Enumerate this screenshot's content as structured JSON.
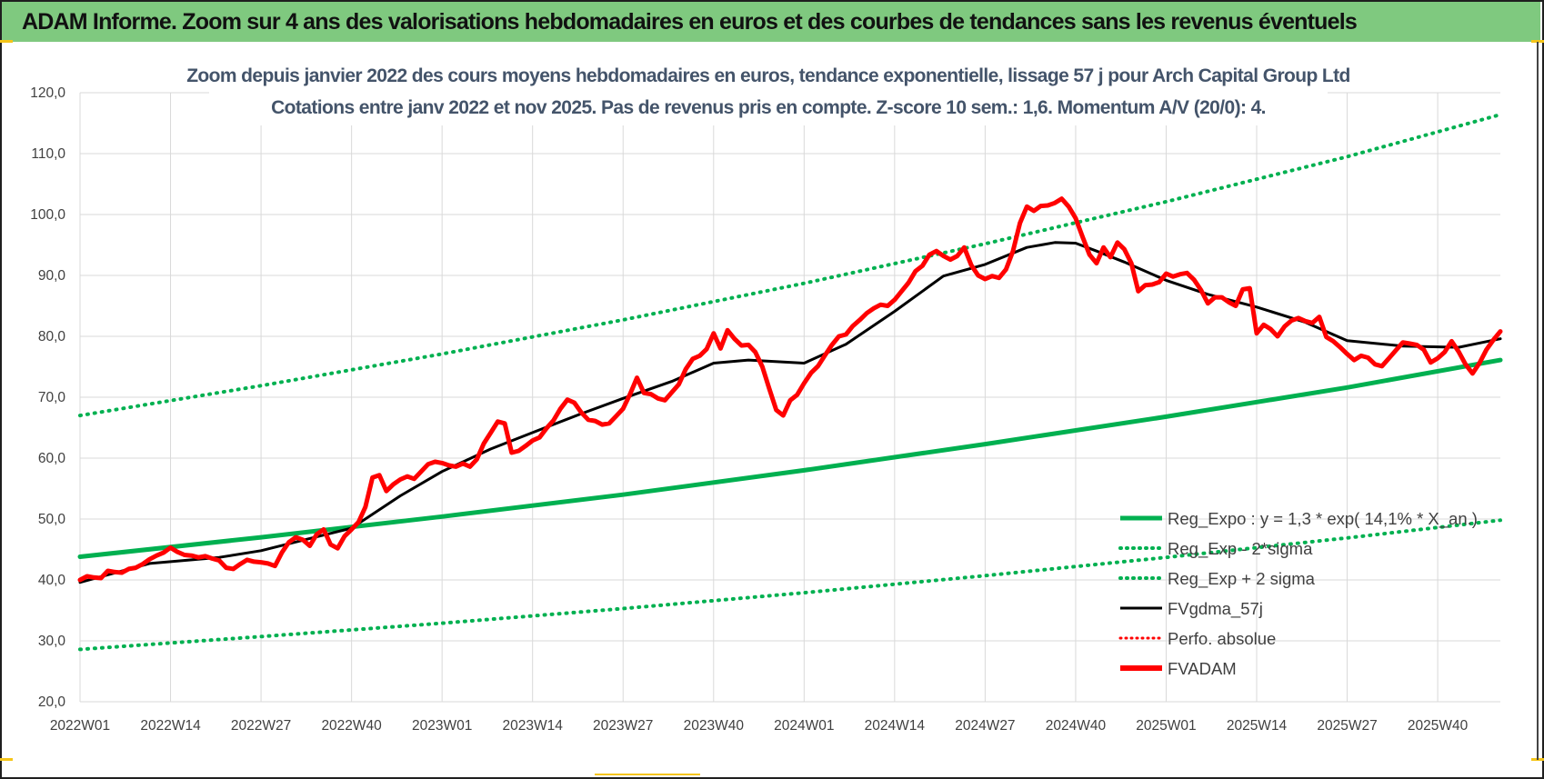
{
  "header": {
    "title": "ADAM Informe. Zoom sur 4 ans des valorisations hebdomadaires en euros et des courbes de tendances sans les revenus éventuels"
  },
  "colors": {
    "header_bg": "#7fc97f",
    "trend": "#00b050",
    "fvgdma": "#000000",
    "perfo": "#ff0000",
    "fvadam": "#ff0000",
    "grid": "#d9d9d9"
  },
  "chart_data": {
    "type": "line",
    "title": "Zoom depuis janvier 2022 des cours moyens hebdomadaires en euros, tendance exponentielle, lissage 57 j pour Arch Capital Group Ltd",
    "subtitle": "Cotations entre janv 2022 et nov 2025. Pas de revenus pris en compte. Z-score 10 sem.: 1,6. Momentum A/V (20/0): 4.",
    "xlabel": "",
    "ylabel": "",
    "ylim": [
      20,
      120
    ],
    "yticks": [
      "120,0",
      "110,0",
      "100,0",
      "90,0",
      "80,0",
      "70,0",
      "60,0",
      "50,0",
      "40,0",
      "30,0",
      "20,0"
    ],
    "x_tick_labels": [
      "2022W01",
      "2022W14",
      "2022W27",
      "2022W40",
      "2023W01",
      "2023W14",
      "2023W27",
      "2023W40",
      "2024W01",
      "2024W14",
      "2024W27",
      "2024W40",
      "2025W01",
      "2025W14",
      "2025W27",
      "2025W40"
    ],
    "x_tick_positions": [
      0,
      13,
      26,
      39,
      52,
      65,
      78,
      91,
      104,
      117,
      130,
      143,
      156,
      169,
      182,
      195
    ],
    "x_max": 204,
    "grid": true,
    "legend_position": "bottom-right",
    "series": [
      {
        "name": "Reg_Expo : y = 1,3 * exp( 14,1% * X_an.)",
        "style": "solid-thick",
        "color": "#00b050",
        "x": [
          0,
          26,
          52,
          78,
          104,
          130,
          156,
          182,
          204
        ],
        "values": [
          43.8,
          47.0,
          50.4,
          54.0,
          58.0,
          62.3,
          66.8,
          71.6,
          76.1
        ]
      },
      {
        "name": "Reg_Exp - 2*sigma",
        "style": "dotted",
        "color": "#00b050",
        "x": [
          0,
          26,
          52,
          78,
          104,
          130,
          156,
          182,
          204
        ],
        "values": [
          28.6,
          30.7,
          32.9,
          35.3,
          37.9,
          40.7,
          43.7,
          46.9,
          49.8
        ]
      },
      {
        "name": "Reg_Exp + 2 sigma",
        "style": "dotted",
        "color": "#00b050",
        "x": [
          0,
          26,
          52,
          78,
          104,
          130,
          156,
          182,
          204
        ],
        "values": [
          67.0,
          71.9,
          77.1,
          82.7,
          88.7,
          95.2,
          102.1,
          109.5,
          116.4
        ]
      },
      {
        "name": "FVgdma_57j",
        "style": "solid",
        "color": "#000000",
        "x": [
          0,
          10,
          20,
          26,
          33,
          39,
          46,
          52,
          59,
          65,
          72,
          78,
          85,
          91,
          96,
          104,
          110,
          117,
          124,
          130,
          136,
          140,
          143,
          146,
          150,
          156,
          162,
          169,
          176,
          182,
          190,
          198,
          204
        ],
        "values": [
          39.6,
          42.7,
          43.7,
          44.8,
          46.8,
          48.5,
          53.8,
          57.8,
          61.5,
          64.2,
          67.3,
          69.8,
          72.6,
          75.6,
          76.1,
          75.6,
          78.7,
          84.1,
          89.9,
          91.8,
          94.6,
          95.4,
          95.3,
          94.0,
          92.2,
          89.2,
          86.9,
          84.8,
          82.3,
          79.3,
          78.4,
          78.2,
          79.6
        ]
      },
      {
        "name": "Perfo. absolue",
        "style": "dotted",
        "color": "#ff0000",
        "x": [],
        "values": []
      },
      {
        "name": "FVADAM",
        "style": "solid-thick",
        "color": "#ff0000",
        "x": [
          0,
          1,
          2,
          3,
          4,
          5,
          6,
          7,
          8,
          9,
          10,
          11,
          12,
          13,
          14,
          15,
          16,
          17,
          18,
          19,
          20,
          21,
          22,
          23,
          24,
          25,
          26,
          27,
          28,
          29,
          30,
          31,
          32,
          33,
          34,
          35,
          36,
          37,
          38,
          39,
          40,
          41,
          42,
          43,
          44,
          45,
          46,
          47,
          48,
          49,
          50,
          51,
          52,
          53,
          54,
          55,
          56,
          57,
          58,
          59,
          60,
          61,
          62,
          63,
          64,
          65,
          66,
          67,
          68,
          69,
          70,
          71,
          72,
          73,
          74,
          75,
          76,
          77,
          78,
          79,
          80,
          81,
          82,
          83,
          84,
          85,
          86,
          87,
          88,
          89,
          90,
          91,
          92,
          93,
          94,
          95,
          96,
          97,
          98,
          99,
          100,
          101,
          102,
          103,
          104,
          105,
          106,
          107,
          108,
          109,
          110,
          111,
          112,
          113,
          114,
          115,
          116,
          117,
          118,
          119,
          120,
          121,
          122,
          123,
          124,
          125,
          126,
          127,
          128,
          129,
          130,
          131,
          132,
          133,
          134,
          135,
          136,
          137,
          138,
          139,
          140,
          141,
          142,
          143,
          144,
          145,
          146,
          147,
          148,
          149,
          150,
          151,
          152,
          153,
          154,
          155,
          156,
          157,
          158,
          159,
          160,
          161,
          162,
          163,
          164,
          165,
          166,
          167,
          168,
          169,
          170,
          171,
          172,
          173,
          174,
          175,
          176,
          177,
          178,
          179,
          180,
          181,
          182,
          183,
          184,
          185,
          186,
          187,
          188,
          189,
          190,
          191,
          192,
          193,
          194,
          195,
          196,
          197,
          198,
          199,
          200,
          201,
          202,
          203,
          204
        ],
        "values": [
          40.0,
          40.6,
          40.4,
          40.3,
          41.5,
          41.3,
          41.2,
          41.8,
          42.0,
          42.6,
          43.4,
          44.0,
          44.5,
          45.3,
          44.6,
          44.1,
          44.0,
          43.7,
          43.9,
          43.5,
          43.2,
          42.0,
          41.8,
          42.6,
          43.3,
          43.0,
          42.9,
          42.7,
          42.3,
          44.5,
          46.2,
          47.0,
          46.6,
          45.6,
          47.5,
          48.3,
          45.8,
          45.2,
          47.2,
          48.3,
          49.5,
          52.0,
          56.8,
          57.2,
          54.6,
          55.7,
          56.5,
          57.0,
          56.6,
          57.8,
          59.0,
          59.4,
          59.2,
          58.8,
          58.6,
          59.1,
          58.6,
          59.8,
          62.4,
          64.2,
          66.0,
          65.7,
          60.9,
          61.2,
          62.0,
          62.9,
          63.4,
          64.9,
          66.2,
          68.1,
          69.6,
          69.1,
          67.5,
          66.3,
          66.1,
          65.5,
          65.7,
          66.9,
          68.1,
          70.5,
          73.2,
          70.7,
          70.5,
          69.8,
          69.5,
          70.8,
          72.1,
          74.6,
          76.3,
          76.8,
          77.9,
          80.5,
          78.0,
          81.0,
          79.6,
          78.5,
          78.6,
          77.4,
          75.0,
          71.4,
          67.9,
          67.0,
          69.5,
          70.4,
          72.3,
          74.0,
          75.1,
          76.9,
          78.6,
          80.0,
          80.3,
          81.7,
          82.7,
          83.8,
          84.6,
          85.2,
          85.0,
          86.0,
          87.4,
          88.8,
          90.7,
          91.6,
          93.4,
          94.0,
          93.2,
          92.6,
          93.2,
          94.6,
          91.7,
          90.0,
          89.4,
          89.9,
          89.6,
          91.0,
          94.0,
          98.6,
          101.3,
          100.6,
          101.4,
          101.5,
          101.9,
          102.6,
          101.3,
          99.4,
          96.3,
          93.4,
          92.0,
          94.6,
          93.0,
          95.4,
          94.3,
          92.0,
          87.4,
          88.4,
          88.5,
          88.9,
          90.3,
          89.8,
          90.2,
          90.4,
          89.3,
          87.6,
          85.4,
          86.4,
          86.4,
          85.6,
          85.0,
          87.7,
          87.9,
          80.5,
          81.9,
          81.2,
          80.0,
          81.6,
          82.6,
          83.0,
          82.5,
          82.2,
          83.2,
          79.9,
          79.2,
          78.2,
          77.1,
          76.1,
          76.8,
          76.5,
          75.4,
          75.1,
          76.4,
          77.7,
          79.0,
          78.8,
          78.6,
          77.8,
          75.7,
          76.4,
          77.4,
          79.2,
          77.5,
          75.4,
          73.9,
          75.6,
          77.8,
          79.4,
          80.8
        ]
      }
    ]
  }
}
